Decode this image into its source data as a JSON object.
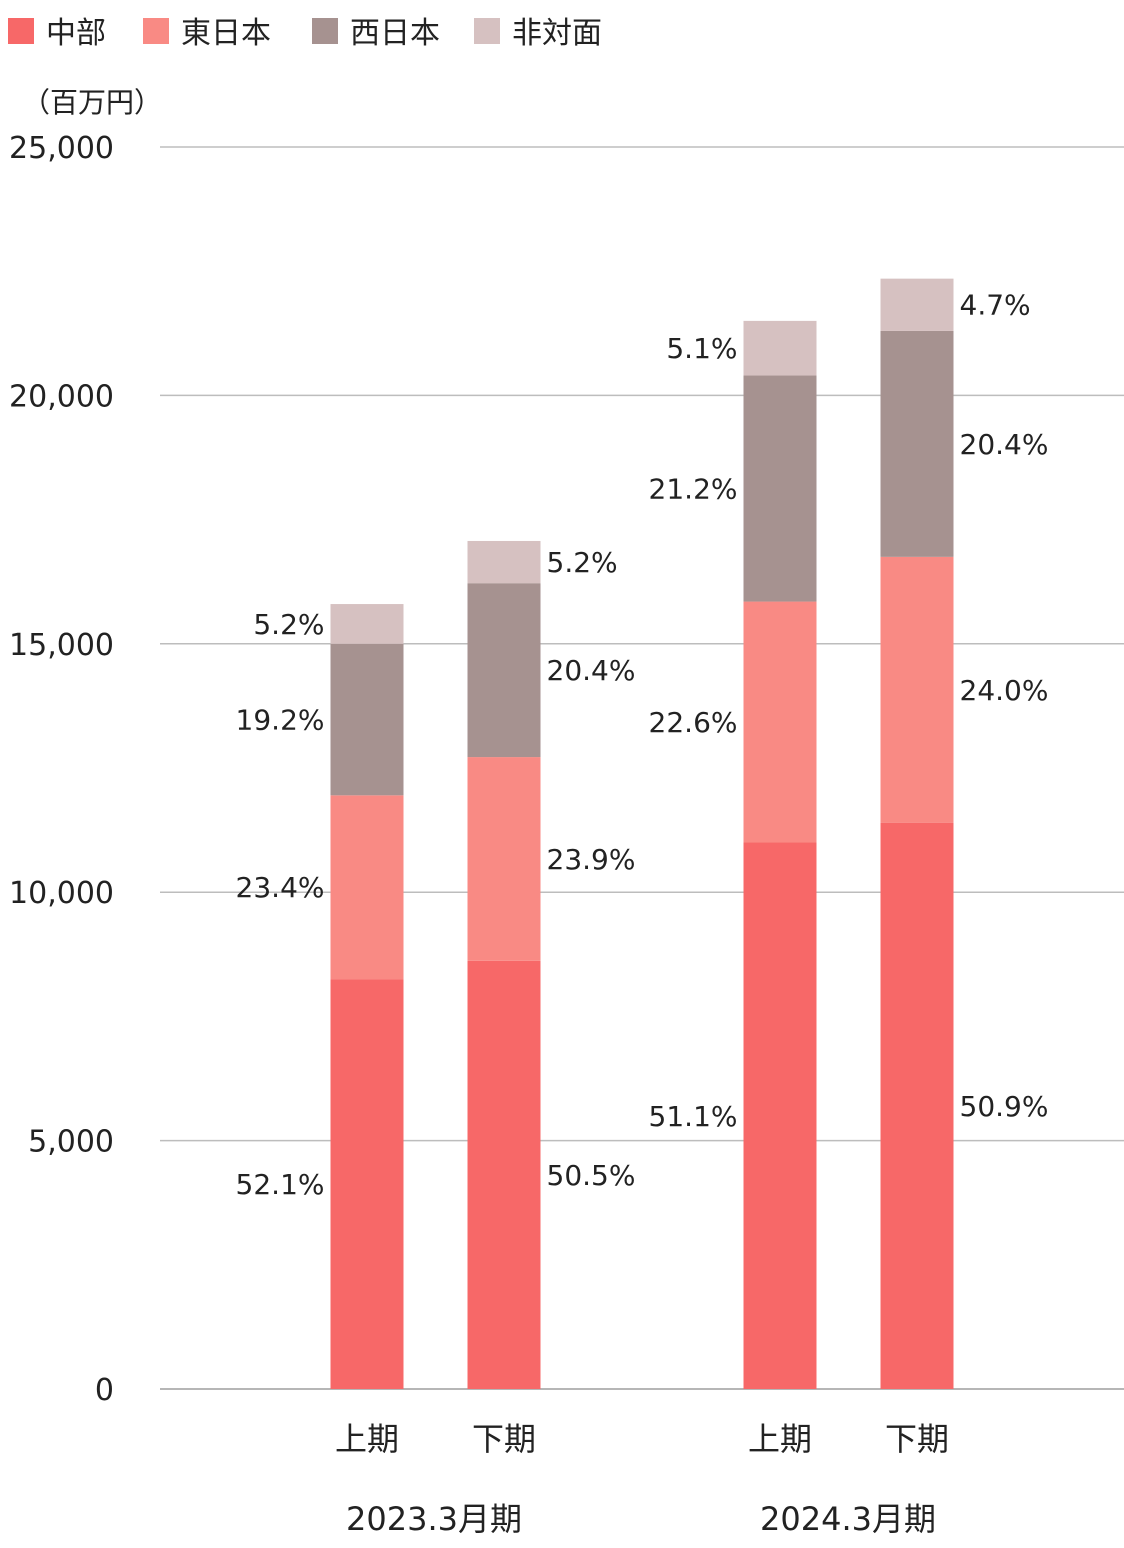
{
  "chart_data": {
    "type": "bar",
    "stacked": true,
    "unit_label": "（百万円）",
    "ylim": [
      0,
      25000
    ],
    "yticks": [
      0,
      5000,
      10000,
      15000,
      20000,
      25000
    ],
    "ytick_labels": [
      "0",
      "5,000",
      "10,000",
      "15,000",
      "20,000",
      "25,000"
    ],
    "grid": true,
    "legend_position": "top-left",
    "groups": [
      {
        "label": "2023.3月期",
        "categories": [
          "上期",
          "下期"
        ]
      },
      {
        "label": "2024.3月期",
        "categories": [
          "上期",
          "下期"
        ]
      }
    ],
    "categories": [
      "上期",
      "下期",
      "上期",
      "下期"
    ],
    "series": [
      {
        "name": "中部",
        "color": "#f76868",
        "values": [
          8250,
          8620,
          11000,
          11400
        ],
        "labels": [
          "52.1%",
          "50.5%",
          "51.1%",
          "50.9%"
        ]
      },
      {
        "name": "東日本",
        "color": "#f98a84",
        "values": [
          3700,
          4100,
          4850,
          5350
        ],
        "labels": [
          "23.4%",
          "23.9%",
          "22.6%",
          "24.0%"
        ]
      },
      {
        "name": "西日本",
        "color": "#a69290",
        "values": [
          3050,
          3500,
          4550,
          4550
        ],
        "labels": [
          "19.2%",
          "20.4%",
          "21.2%",
          "20.4%"
        ]
      },
      {
        "name": "非対面",
        "color": "#d6c1c1",
        "values": [
          800,
          850,
          1100,
          1050
        ],
        "labels": [
          "5.2%",
          "5.2%",
          "5.1%",
          "4.7%"
        ]
      }
    ]
  }
}
